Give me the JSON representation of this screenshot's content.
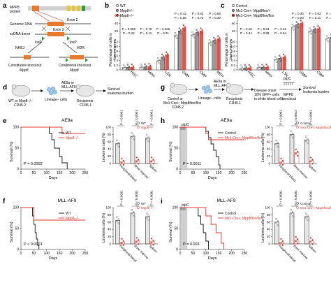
{
  "panel_letters": {
    "a": "a",
    "b": "b",
    "c": "c",
    "d": "d",
    "e": "e",
    "f": "f",
    "g": "g",
    "h": "h",
    "i": "i"
  },
  "panel_a": {
    "protein": "MPP8",
    "protein2": "protein",
    "dna": "Genomic DNA",
    "ssdna": "ssDNA donor",
    "exon": "Exon 2",
    "loxp": "loxP",
    "nhej": "NHEJ",
    "hdr": "HDR",
    "out_left_1": "Constitutive knockout",
    "out_left_2": "Mpp8",
    "out_right_1": "Conditional knockout",
    "out_right_2": "Mpp8"
  },
  "panel_b": {
    "legend": [
      "WT",
      "Mpp8+/−",
      "Mpp8−/−"
    ],
    "ylabel_1": "Percentage of cells in",
    "ylabel_2": "bone marrow",
    "yticks": [
      "0",
      "0.2",
      "0.4",
      "0.6",
      "0.8",
      "1.0",
      "1.2",
      "20",
      "40",
      "60"
    ],
    "categories": [
      "HSC",
      "MPP",
      "LSK",
      "GMP",
      "CMP",
      "MEP"
    ],
    "pvals": [
      "P = 0.059",
      "P = 0.24",
      "P = 0.78",
      "P = 0.11",
      "P = 0.025",
      "P = 0.31",
      "P = 0.42",
      "P = 0.56",
      "P = 0.63",
      "P = 0.72",
      "P = 0.66",
      "P = 0.30",
      "P = 0.29",
      "P = 0.089"
    ],
    "chart_data": {
      "type": "bar",
      "categories": [
        "HSC",
        "MPP",
        "LSK",
        "GMP",
        "CMP",
        "MEP"
      ],
      "series": [
        {
          "name": "WT",
          "values": [
            0.1,
            0.12,
            0.4,
            44,
            45,
            35
          ]
        },
        {
          "name": "Mpp8+/−",
          "values": [
            0.11,
            0.13,
            0.55,
            50,
            48,
            38
          ]
        },
        {
          "name": "Mpp8−/−",
          "values": [
            0.12,
            0.15,
            0.65,
            54,
            50,
            40
          ]
        }
      ]
    }
  },
  "panel_c": {
    "legend": [
      "Control",
      "Mx1-Cre+; Mpp8flox/+",
      "Mx1-Cre+; Mpp8flox/flox"
    ],
    "ylabel_1": "Percentage of cells in",
    "ylabel_2": "bone marrow",
    "yticks": [
      "0",
      "0.2",
      "0.4",
      "0.6",
      "0.8",
      "1.0",
      "20",
      "40",
      "60",
      "80"
    ],
    "categories": [
      "HSC",
      "MPP",
      "LSK",
      "GMP",
      "CMP",
      "MEP"
    ],
    "pvals": [
      "P = 0.18",
      "P = 0.44",
      "P = 0.84",
      "P = 0.98",
      "P = 0.42",
      "P = 0.94",
      "P = 0.30",
      "P = 0.20",
      "P = 0.93",
      "P = 0.11",
      "P = 0.63",
      "P = 0.53",
      "P = 0.66",
      "P = 0.98"
    ],
    "chart_data": {
      "type": "bar",
      "categories": [
        "HSC",
        "MPP",
        "LSK",
        "GMP",
        "CMP",
        "MEP"
      ],
      "series": [
        {
          "name": "Control",
          "values": [
            0.08,
            0.1,
            0.45,
            55,
            50,
            40
          ]
        },
        {
          "name": "Mx1-Cre+; Mpp8flox/+",
          "values": [
            0.09,
            0.11,
            0.5,
            58,
            52,
            42
          ]
        },
        {
          "name": "Mx1-Cre+; Mpp8flox/flox",
          "values": [
            0.1,
            0.12,
            0.55,
            60,
            53,
            43
          ]
        }
      ]
    }
  },
  "panel_d": {
    "donor_1": "WT or Mpp8−/−",
    "donor_2": "CD45.2",
    "cells": "Lineage− cells",
    "virus_1": "AE9a or",
    "virus_2": "MLL-AF9",
    "recip_1": "Recipients",
    "recip_2": "CD45.1",
    "outcome_1": "Survival",
    "outcome_2": "leukemia burden"
  },
  "panel_g": {
    "donor_1": "Control or",
    "donor_2": "Mx1-Cre+; Mpp8flox/flox",
    "donor_3": "CD45.2",
    "cells": "Lineage− cells",
    "virus_1": "AE9a or",
    "virus_2": "MLL-AF9",
    "recip_1": "Recipients",
    "recip_2": "CD45.1",
    "onset_1": "Disease onset",
    "onset_2": "10% GFP+ cells",
    "onset_3": "in white blood cells",
    "pipc": "pIpC",
    "mpp8ko_1": "MPP8",
    "mpp8ko_2": "knockout",
    "outcome_1": "Survival",
    "outcome_2": "leukemia burden"
  },
  "panel_e": {
    "title": "AE9a",
    "ylabel": "Survival (%)",
    "xlabel": "Days",
    "xticks": [
      "0",
      "50",
      "100",
      "150",
      "200",
      "250"
    ],
    "yticks": [
      "0",
      "50",
      "100"
    ],
    "legend": [
      "WT",
      "Mpp8−/−"
    ],
    "pval": "P = 0.0002",
    "bar_legend": [
      "WT",
      "Mpp8−/−"
    ],
    "bar_ylabel": "Leukemia cells (%)",
    "bar_yticks": [
      "0",
      "20",
      "40",
      "60",
      "80",
      "100"
    ],
    "bar_categories": [
      "Peripheral blood",
      "Bone marrow",
      "Spleen"
    ],
    "bar_pvals": [
      "P < 0.0001",
      "P < 0.0001",
      "P < 0.0001"
    ],
    "chart_data": {
      "type": "line",
      "x_range": [
        0,
        250
      ],
      "ylim": [
        0,
        100
      ],
      "series": [
        {
          "name": "WT",
          "x": [
            0,
            100,
            110,
            120,
            130,
            150,
            160,
            180
          ],
          "y": [
            100,
            100,
            85,
            70,
            50,
            30,
            15,
            0
          ]
        },
        {
          "name": "Mpp8−/−",
          "x": [
            0,
            140,
            160,
            250
          ],
          "y": [
            100,
            100,
            85,
            85
          ]
        }
      ],
      "bars": {
        "categories": [
          "Peripheral blood",
          "Bone marrow",
          "Spleen"
        ],
        "WT": [
          55,
          75,
          70
        ],
        "Mpp8−/−": [
          5,
          8,
          8
        ]
      }
    }
  },
  "panel_f": {
    "title": "MLL-AF9",
    "ylabel": "Survival (%)",
    "xlabel": "Days",
    "xticks": [
      "0",
      "50",
      "100",
      "150",
      "200",
      "250"
    ],
    "yticks": [
      "0",
      "50",
      "100"
    ],
    "legend": [
      "WT",
      "Mpp8−/−"
    ],
    "pval": "P < 0.0001",
    "bar_legend": [
      "WT",
      "Mpp8−/−"
    ],
    "bar_ylabel": "Leukemia cells (%)",
    "bar_yticks": [
      "0",
      "20",
      "40",
      "60",
      "80",
      "100"
    ],
    "bar_categories": [
      "Peripheral blood",
      "Bone marrow",
      "Spleen"
    ],
    "bar_pvals": [
      "P < 0.0001",
      "P < 0.0001",
      "P < 0.0001"
    ],
    "chart_data": {
      "type": "line",
      "x_range": [
        0,
        250
      ],
      "ylim": [
        0,
        100
      ],
      "series": [
        {
          "name": "WT",
          "x": [
            0,
            40,
            45,
            50,
            55,
            60,
            65,
            70
          ],
          "y": [
            100,
            100,
            80,
            60,
            40,
            25,
            10,
            0
          ]
        },
        {
          "name": "Mpp8−/−",
          "x": [
            0,
            40,
            50,
            250
          ],
          "y": [
            100,
            100,
            70,
            70
          ]
        }
      ],
      "bars": {
        "categories": [
          "Peripheral blood",
          "Bone marrow",
          "Spleen"
        ],
        "WT": [
          65,
          85,
          75
        ],
        "Mpp8−/−": [
          5,
          8,
          6
        ]
      }
    }
  },
  "panel_h": {
    "title": "AE9a",
    "ylabel": "Survival (%)",
    "xlabel": "Days",
    "xticks": [
      "0",
      "50",
      "100",
      "150",
      "200",
      "250"
    ],
    "yticks": [
      "0",
      "50",
      "100"
    ],
    "legend": [
      "Control",
      "Mx1-Cre+; Mpp8flox/flox"
    ],
    "pipc": "pIpC",
    "pval": "P = 0.0011",
    "bar_legend": [
      "Control",
      "Mx1-Cre+; Mpp8flox/flox"
    ],
    "bar_ylabel": "Leukemia cells (%)",
    "bar_yticks": [
      "0",
      "20",
      "40",
      "60",
      "80",
      "100"
    ],
    "bar_categories": [
      "Peripheral blood",
      "Bone marrow",
      "Spleen"
    ],
    "bar_pvals": [
      "P < 0.0001",
      "P = 0.0012",
      "P < 0.0001"
    ],
    "chart_data": {
      "type": "line",
      "x_range": [
        0,
        250
      ],
      "ylim": [
        0,
        100
      ],
      "series": [
        {
          "name": "Control",
          "x": [
            0,
            90,
            100,
            110,
            120,
            130,
            140,
            150,
            155
          ],
          "y": [
            100,
            100,
            90,
            75,
            60,
            45,
            30,
            10,
            0
          ]
        },
        {
          "name": "Mx1-Cre+; Mpp8flox/flox",
          "x": [
            0,
            90,
            100,
            110,
            250
          ],
          "y": [
            100,
            100,
            85,
            70,
            70
          ]
        }
      ],
      "bars": {
        "categories": [
          "Peripheral blood",
          "Bone marrow",
          "Spleen"
        ],
        "Control": [
          55,
          80,
          65
        ],
        "Mx1-Cre+; Mpp8flox/flox": [
          5,
          30,
          8
        ]
      }
    }
  },
  "panel_i": {
    "title": "MLL-AF9",
    "ylabel": "Survival (%)",
    "xlabel": "Days",
    "xticks": [
      "0",
      "50",
      "100",
      "150",
      "200",
      "250"
    ],
    "yticks": [
      "0",
      "50",
      "100"
    ],
    "legend": [
      "Control",
      "Mx1-Cre+; Mpp8flox/flox"
    ],
    "pipc": "pIpC",
    "pval": "P = 0.003",
    "bar_legend": [
      "Control",
      "Mx1-Cre+; Mpp8flox/flox"
    ],
    "bar_ylabel": "Leukemia cells (%)",
    "bar_yticks": [
      "0",
      "20",
      "40",
      "60",
      "80",
      "100"
    ],
    "bar_categories": [
      "Peripheral blood",
      "Bone marrow",
      "Spleen"
    ],
    "bar_pvals": [
      "P < 0.0001",
      "P < 0.0001",
      "P < 0.0001"
    ],
    "chart_data": {
      "type": "line",
      "x_range": [
        0,
        250
      ],
      "ylim": [
        0,
        100
      ],
      "series": [
        {
          "name": "Control",
          "x": [
            0,
            60,
            70,
            80,
            90,
            100,
            110
          ],
          "y": [
            100,
            100,
            80,
            60,
            40,
            20,
            0
          ]
        },
        {
          "name": "Mx1-Cre+; Mpp8flox/flox",
          "x": [
            0,
            80,
            100,
            120,
            140,
            160,
            170
          ],
          "y": [
            100,
            100,
            80,
            60,
            40,
            15,
            0
          ]
        }
      ],
      "bars": {
        "categories": [
          "Peripheral blood",
          "Bone marrow",
          "Spleen"
        ],
        "Control": [
          60,
          85,
          75
        ],
        "Mx1-Cre+; Mpp8flox/flox": [
          5,
          10,
          8
        ]
      }
    }
  },
  "colors": {
    "black": "#111111",
    "red": "#e0342b",
    "grey": "#9a9a9a",
    "lightgrey": "#d0d0d0",
    "orange": "#e87a2d",
    "green": "#2e9e3c",
    "yellow": "#e3c43a",
    "pink": "#f2b8b5"
  }
}
